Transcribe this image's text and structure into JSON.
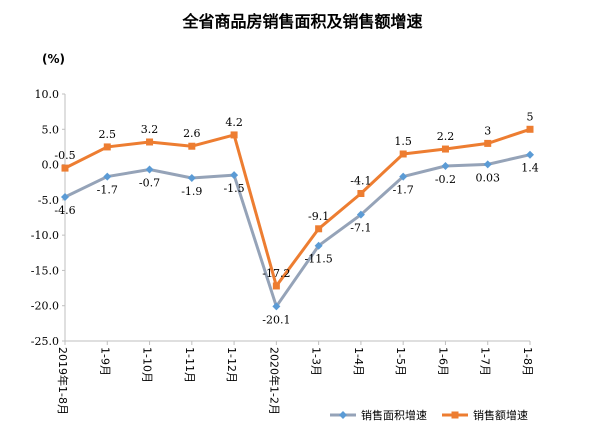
{
  "chart_data": {
    "type": "line",
    "title": "全省商品房销售面积及销售额增速",
    "ylabel": "(%)",
    "xlabel": "",
    "ylim": [
      -25,
      10
    ],
    "yticks": [
      10,
      5,
      0,
      -5,
      -10,
      -15,
      -20,
      -25
    ],
    "ytick_labels": [
      "10.0",
      "5.0",
      "0.0",
      "-5.0",
      "-10.0",
      "-15.0",
      "-20.0",
      "-25.0"
    ],
    "categories": [
      "2019年1-8月",
      "1-9月",
      "1-10月",
      "1-11月",
      "1-12月",
      "2020年1-2月",
      "1-3月",
      "1-4月",
      "1-5月",
      "1-6月",
      "1-7月",
      "1-8月"
    ],
    "grid": false,
    "legend": "bottom-right",
    "series": [
      {
        "name": "销售面积增速",
        "color": "#95a3b8",
        "marker": "diamond",
        "marker_color": "#5b9bd5",
        "values": [
          -4.6,
          -1.7,
          -0.7,
          -1.9,
          -1.5,
          -20.1,
          -11.5,
          -7.1,
          -1.7,
          -0.2,
          0.03,
          1.4
        ],
        "labels": [
          "-4.6",
          "-1.7",
          "-0.7",
          "-1.9",
          "-1.5",
          "-20.1",
          "-11.5",
          "-7.1",
          "-1.7",
          "-0.2",
          "0.03",
          "1.4"
        ]
      },
      {
        "name": "销售额增速",
        "color": "#ed7d31",
        "marker": "square",
        "marker_color": "#ed7d31",
        "values": [
          -0.5,
          2.5,
          3.2,
          2.6,
          4.2,
          -17.2,
          -9.1,
          -4.1,
          1.5,
          2.2,
          3.0,
          5.0
        ],
        "labels": [
          "-0.5",
          "2.5",
          "3.2",
          "2.6",
          "4.2",
          "-17.2",
          "-9.1",
          "-4.1",
          "1.5",
          "2.2",
          "3",
          "5"
        ]
      }
    ]
  }
}
